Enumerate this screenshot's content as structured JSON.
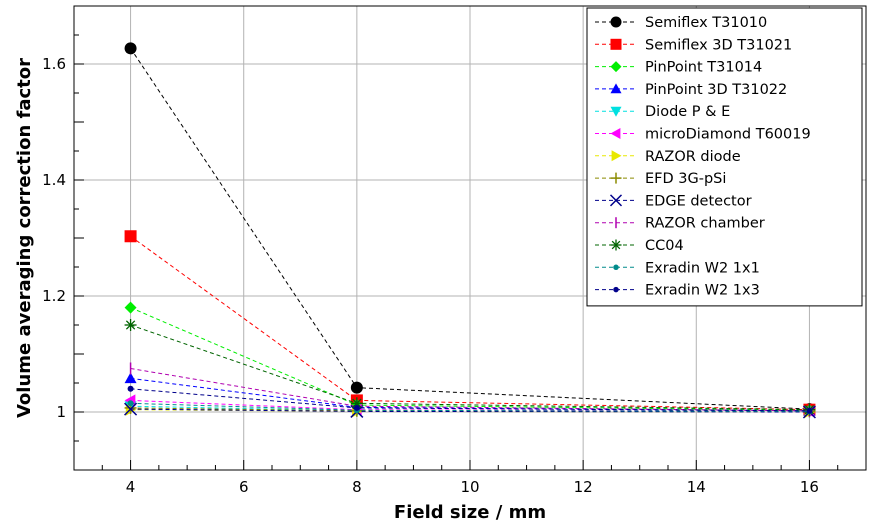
{
  "chart_data": {
    "type": "line",
    "title": "",
    "xlabel": "Field size / mm",
    "ylabel": "Volume averaging correction factor",
    "xlim": [
      3,
      17
    ],
    "ylim": [
      0.9,
      1.7
    ],
    "xticks": [
      4,
      6,
      8,
      10,
      12,
      14,
      16
    ],
    "yticks": [
      1,
      1.2,
      1.4,
      1.6
    ],
    "xtick_labels": [
      "4",
      "6",
      "8",
      "10",
      "12",
      "14",
      "16"
    ],
    "ytick_labels": [
      "1",
      "1.2",
      "1.4",
      "1.6"
    ],
    "grid": true,
    "legend_position": "top-right",
    "x": [
      4,
      8,
      16
    ],
    "series": [
      {
        "name": "Semiflex T31010",
        "color": "#000000",
        "marker": "circle",
        "values": [
          1.627,
          1.042,
          1.005
        ]
      },
      {
        "name": "Semiflex 3D T31021",
        "color": "#ff0000",
        "marker": "square",
        "values": [
          1.303,
          1.02,
          1.004
        ]
      },
      {
        "name": "PinPoint T31014",
        "color": "#00ee00",
        "marker": "diamond",
        "values": [
          1.18,
          1.012,
          1.003
        ]
      },
      {
        "name": "PinPoint 3D T31022",
        "color": "#0000ff",
        "marker": "triangle-up",
        "values": [
          1.058,
          1.008,
          1.002
        ]
      },
      {
        "name": "Diode P & E",
        "color": "#00e0e0",
        "marker": "triangle-down",
        "values": [
          1.01,
          1.002,
          1.001
        ]
      },
      {
        "name": "microDiamond T60019",
        "color": "#ff00ff",
        "marker": "triangle-left",
        "values": [
          1.02,
          1.004,
          1.001
        ]
      },
      {
        "name": "RAZOR diode",
        "color": "#e8e800",
        "marker": "triangle-right",
        "values": [
          1.004,
          1.001,
          1.0
        ]
      },
      {
        "name": "EFD 3G-pSi",
        "color": "#8b8b00",
        "marker": "plus",
        "values": [
          1.007,
          1.002,
          1.001
        ]
      },
      {
        "name": "EDGE detector",
        "color": "#00008b",
        "marker": "x",
        "values": [
          1.005,
          1.001,
          1.0
        ]
      },
      {
        "name": "RAZOR chamber",
        "color": "#b000b0",
        "marker": "vline",
        "values": [
          1.075,
          1.01,
          1.002
        ]
      },
      {
        "name": "CC04",
        "color": "#006400",
        "marker": "star",
        "values": [
          1.15,
          1.015,
          1.004
        ]
      },
      {
        "name": "Exradin W2 1x1",
        "color": "#008b8b",
        "marker": "dot",
        "values": [
          1.015,
          1.003,
          1.001
        ]
      },
      {
        "name": "Exradin W2 1x3",
        "color": "#00008b",
        "marker": "dot",
        "values": [
          1.04,
          1.007,
          1.002
        ]
      }
    ]
  }
}
